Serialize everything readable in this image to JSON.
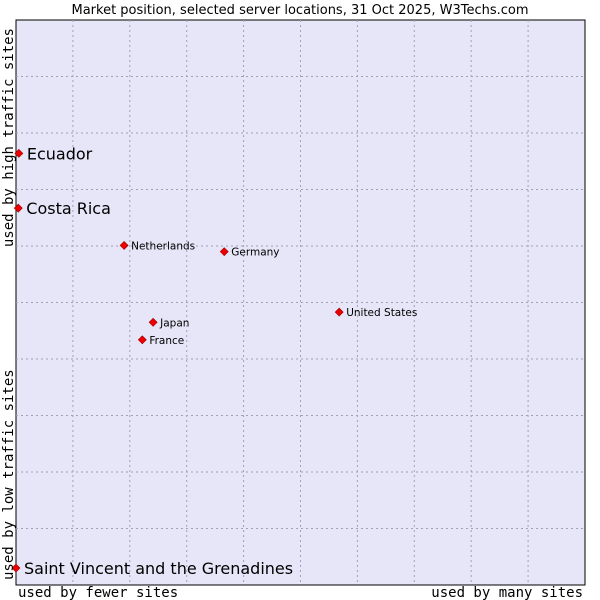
{
  "chart_data": {
    "type": "scatter",
    "title": "Market position, selected server locations, 31 Oct 2025, W3Techs.com",
    "x_label_left": "used by fewer sites",
    "x_label_right": "used by many sites",
    "y_label_top": "used by high traffic sites",
    "y_label_bottom": "used by low traffic sites",
    "xlim": [
      0,
      100
    ],
    "ylim": [
      0,
      100
    ],
    "grid": true,
    "colors": {
      "plot_bg": "#e6e6f8",
      "point": "#ee0000",
      "grid": "#a0a0b8"
    },
    "points": [
      {
        "name": "Ecuador",
        "x": 0.5,
        "y": 76.4,
        "emphasis": true
      },
      {
        "name": "Costa Rica",
        "x": 0.4,
        "y": 66.7,
        "emphasis": true
      },
      {
        "name": "Netherlands",
        "x": 19.0,
        "y": 60.1,
        "emphasis": false
      },
      {
        "name": "Germany",
        "x": 36.6,
        "y": 59.0,
        "emphasis": false
      },
      {
        "name": "United States",
        "x": 56.8,
        "y": 48.3,
        "emphasis": false
      },
      {
        "name": "Japan",
        "x": 24.1,
        "y": 46.5,
        "emphasis": false
      },
      {
        "name": "France",
        "x": 22.2,
        "y": 43.4,
        "emphasis": false
      },
      {
        "name": "Saint Vincent and the Grenadines",
        "x": 0.0,
        "y": 3.0,
        "emphasis": true
      }
    ]
  }
}
